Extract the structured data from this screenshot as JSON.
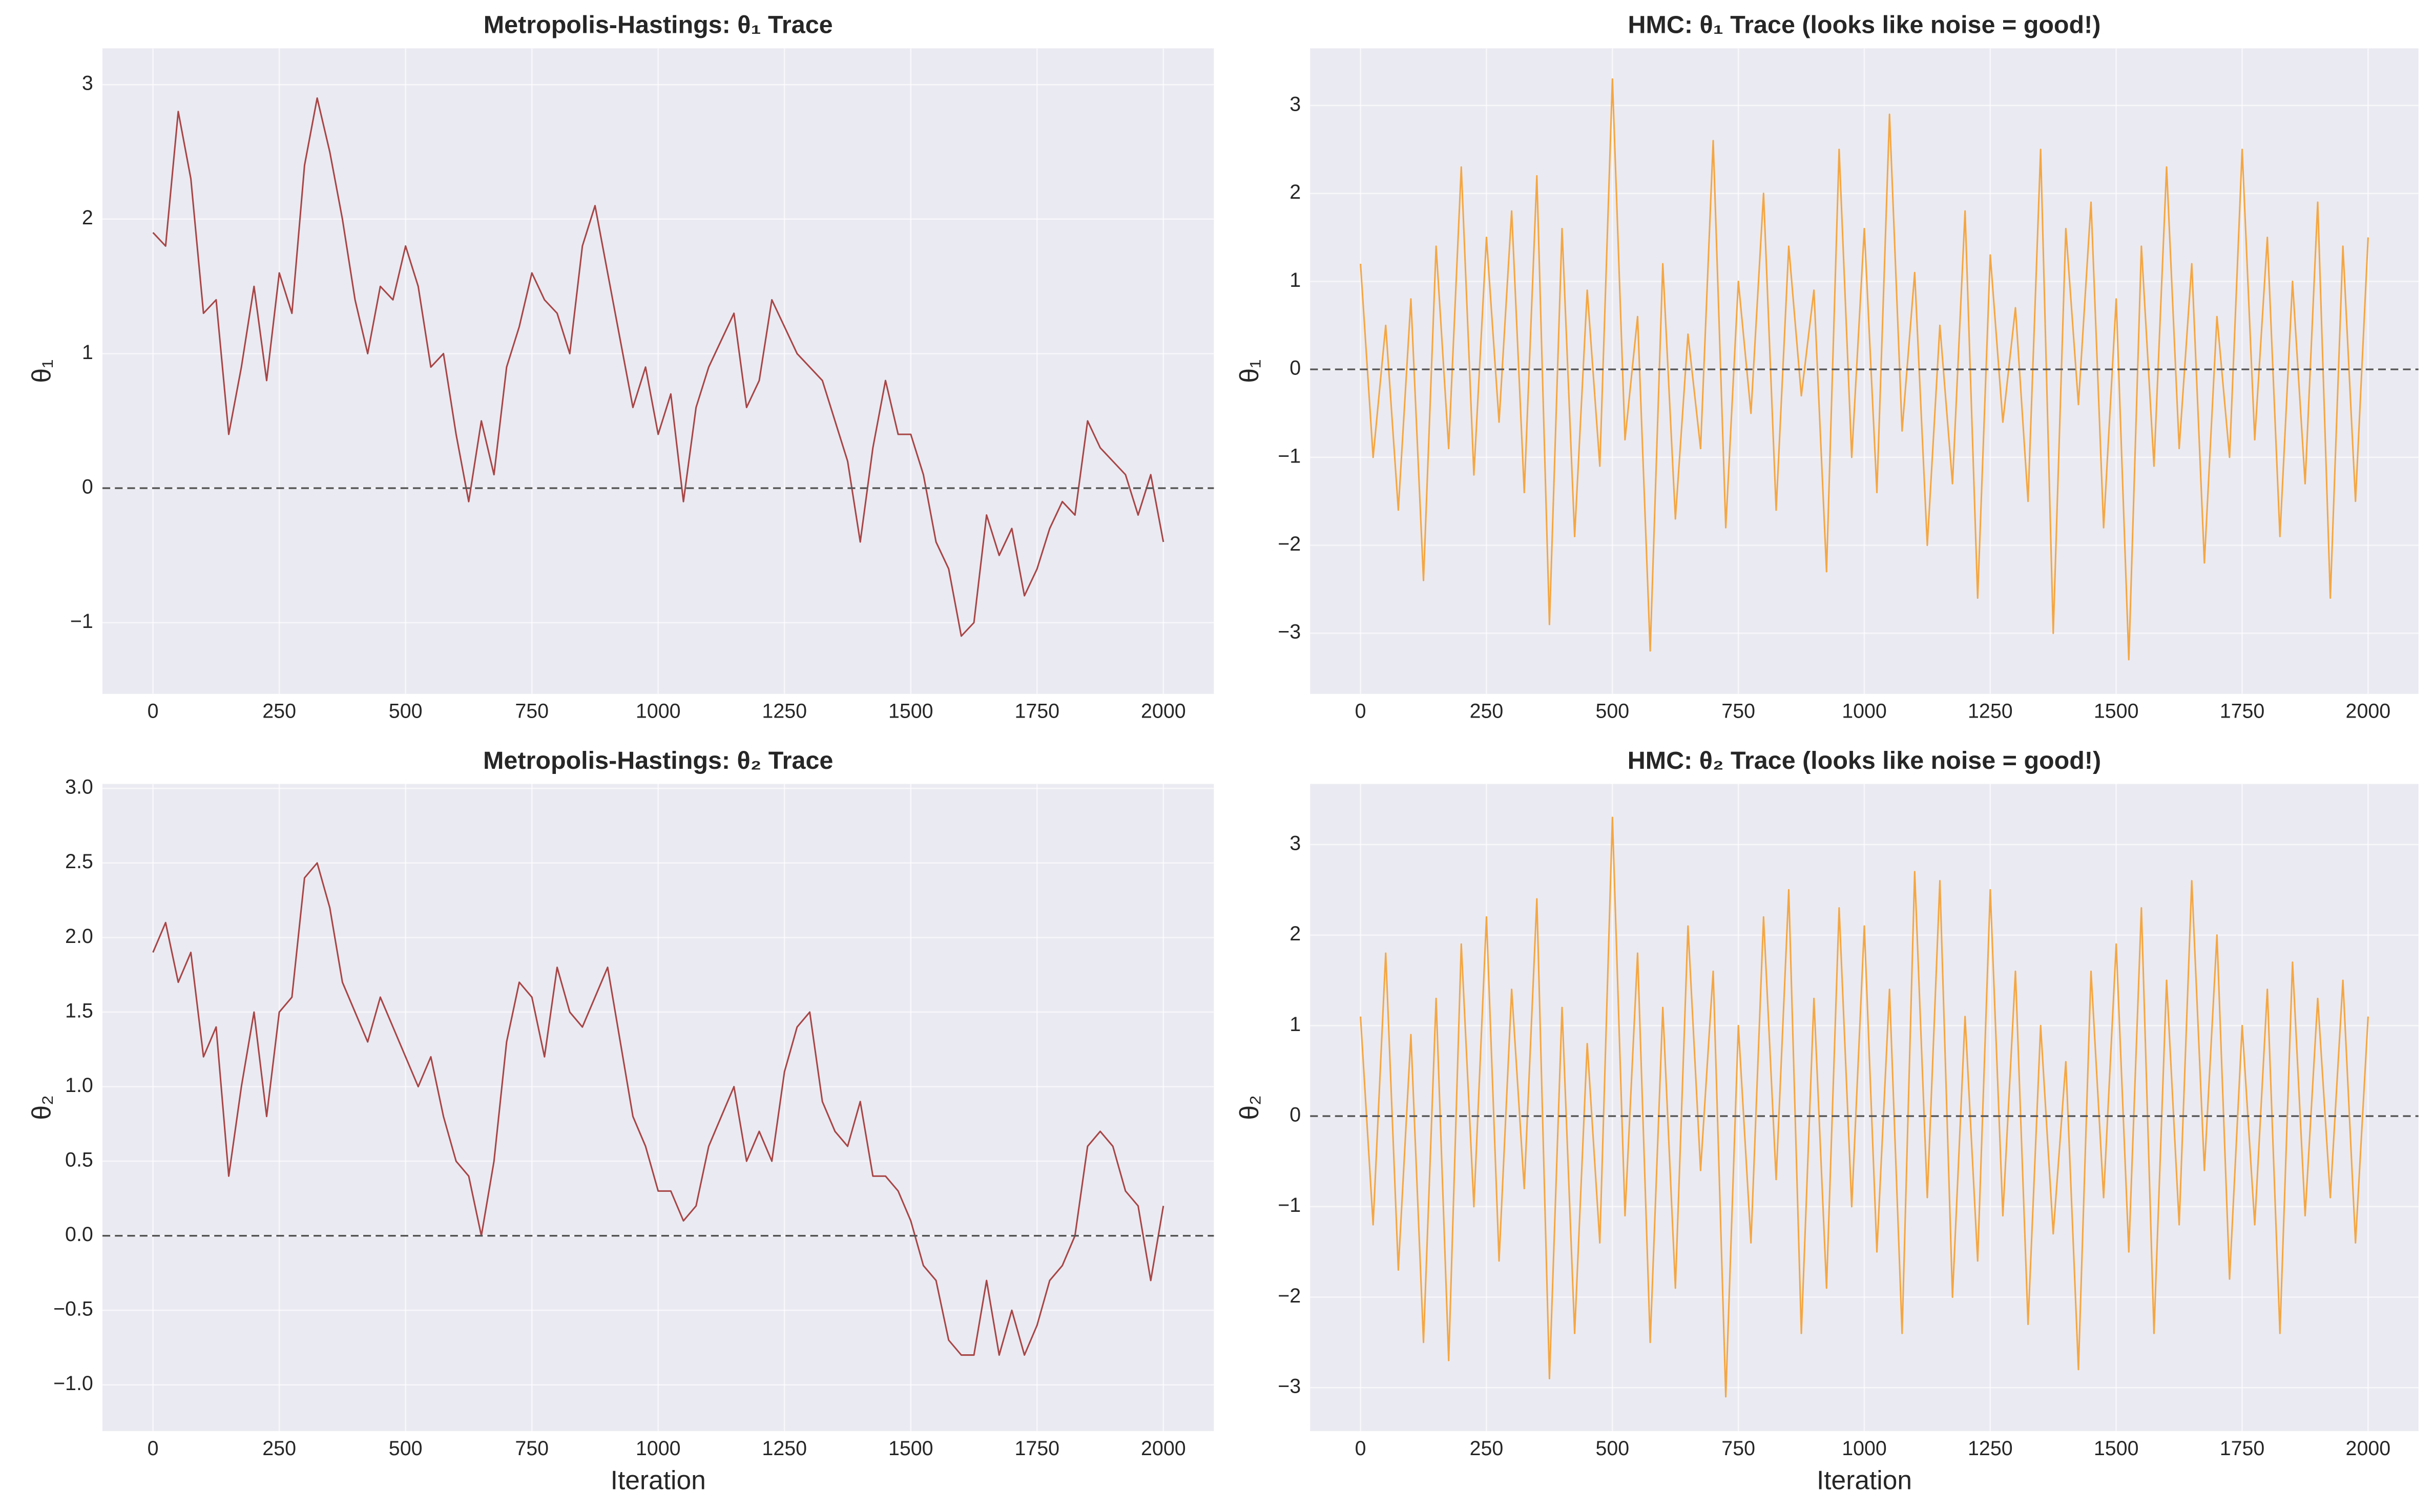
{
  "chart_data": [
    {
      "type": "line",
      "title": "Metropolis-Hastings: θ₁ Trace",
      "ylabel": "θ₁",
      "color": "#a84545",
      "grid": true,
      "hline": 0,
      "xlim": [
        -100,
        2100
      ],
      "ylim": [
        -1.53,
        3.27
      ],
      "xticks": [
        0,
        250,
        500,
        750,
        1000,
        1250,
        1500,
        1750,
        2000
      ],
      "yticks": [
        {
          "value": -1,
          "label": "−1"
        },
        0,
        1,
        2,
        3
      ],
      "x": [
        0,
        25,
        50,
        75,
        100,
        125,
        150,
        175,
        200,
        225,
        250,
        275,
        300,
        325,
        350,
        375,
        400,
        425,
        450,
        475,
        500,
        525,
        550,
        575,
        600,
        625,
        650,
        675,
        700,
        725,
        750,
        775,
        800,
        825,
        850,
        875,
        900,
        925,
        950,
        975,
        1000,
        1025,
        1050,
        1075,
        1100,
        1125,
        1150,
        1175,
        1200,
        1225,
        1250,
        1275,
        1300,
        1325,
        1350,
        1375,
        1400,
        1425,
        1450,
        1475,
        1500,
        1525,
        1550,
        1575,
        1600,
        1625,
        1650,
        1675,
        1700,
        1725,
        1750,
        1775,
        1800,
        1825,
        1850,
        1875,
        1900,
        1925,
        1950,
        1975,
        2000
      ],
      "values": [
        1.9,
        1.8,
        2.8,
        2.3,
        1.3,
        1.4,
        0.4,
        0.9,
        1.5,
        0.8,
        1.6,
        1.3,
        2.4,
        2.9,
        2.5,
        2.0,
        1.4,
        1.0,
        1.5,
        1.4,
        1.8,
        1.5,
        0.9,
        1.0,
        0.4,
        -0.1,
        0.5,
        0.1,
        0.9,
        1.2,
        1.6,
        1.4,
        1.3,
        1.0,
        1.8,
        2.1,
        1.6,
        1.1,
        0.6,
        0.9,
        0.4,
        0.7,
        -0.1,
        0.6,
        0.9,
        1.1,
        1.3,
        0.6,
        0.8,
        1.4,
        1.2,
        1.0,
        0.9,
        0.8,
        0.5,
        0.2,
        -0.4,
        0.3,
        0.8,
        0.4,
        0.4,
        0.1,
        -0.4,
        -0.6,
        -1.1,
        -1.0,
        -0.2,
        -0.5,
        -0.3,
        -0.8,
        -0.6,
        -0.3,
        -0.1,
        -0.2,
        0.5,
        0.3,
        0.2,
        0.1,
        -0.2,
        0.1,
        -0.4
      ]
    },
    {
      "type": "line",
      "title": "HMC: θ₁ Trace (looks like noise = good!)",
      "ylabel": "θ₁",
      "color": "#f5a640",
      "grid": true,
      "hline": 0,
      "xlim": [
        -100,
        2100
      ],
      "ylim": [
        -3.69,
        3.65
      ],
      "xticks": [
        0,
        250,
        500,
        750,
        1000,
        1250,
        1500,
        1750,
        2000
      ],
      "yticks": [
        {
          "value": -3,
          "label": "−3"
        },
        {
          "value": -2,
          "label": "−2"
        },
        {
          "value": -1,
          "label": "−1"
        },
        0,
        1,
        2,
        3
      ],
      "x": [
        0,
        25,
        50,
        75,
        100,
        125,
        150,
        175,
        200,
        225,
        250,
        275,
        300,
        325,
        350,
        375,
        400,
        425,
        450,
        475,
        500,
        525,
        550,
        575,
        600,
        625,
        650,
        675,
        700,
        725,
        750,
        775,
        800,
        825,
        850,
        875,
        900,
        925,
        950,
        975,
        1000,
        1025,
        1050,
        1075,
        1100,
        1125,
        1150,
        1175,
        1200,
        1225,
        1250,
        1275,
        1300,
        1325,
        1350,
        1375,
        1400,
        1425,
        1450,
        1475,
        1500,
        1525,
        1550,
        1575,
        1600,
        1625,
        1650,
        1675,
        1700,
        1725,
        1750,
        1775,
        1800,
        1825,
        1850,
        1875,
        1900,
        1925,
        1950,
        1975,
        2000
      ],
      "values": [
        1.2,
        -1.0,
        0.5,
        -1.6,
        0.8,
        -2.4,
        1.4,
        -0.9,
        2.3,
        -1.2,
        1.5,
        -0.6,
        1.8,
        -1.4,
        2.2,
        -2.9,
        1.6,
        -1.9,
        0.9,
        -1.1,
        3.3,
        -0.8,
        0.6,
        -3.2,
        1.2,
        -1.7,
        0.4,
        -0.9,
        2.6,
        -1.8,
        1.0,
        -0.5,
        2.0,
        -1.6,
        1.4,
        -0.3,
        0.9,
        -2.3,
        2.5,
        -1.0,
        1.6,
        -1.4,
        2.9,
        -0.7,
        1.1,
        -2.0,
        0.5,
        -1.3,
        1.8,
        -2.6,
        1.3,
        -0.6,
        0.7,
        -1.5,
        2.5,
        -3.0,
        1.6,
        -0.4,
        1.9,
        -1.8,
        0.8,
        -3.3,
        1.4,
        -1.1,
        2.3,
        -0.9,
        1.2,
        -2.2,
        0.6,
        -1.0,
        2.5,
        -0.8,
        1.5,
        -1.9,
        1.0,
        -1.3,
        1.9,
        -2.6,
        1.4,
        -1.5,
        1.5
      ]
    },
    {
      "type": "line",
      "title": "Metropolis-Hastings: θ₂ Trace",
      "xlabel": "Iteration",
      "ylabel": "θ₂",
      "color": "#a84545",
      "grid": true,
      "hline": 0,
      "xlim": [
        -100,
        2100
      ],
      "ylim": [
        -1.31,
        3.03
      ],
      "xticks": [
        0,
        250,
        500,
        750,
        1000,
        1250,
        1500,
        1750,
        2000
      ],
      "yticks": [
        {
          "value": -1,
          "label": "−1.0"
        },
        {
          "value": -0.5,
          "label": "−0.5"
        },
        {
          "value": 0,
          "label": "0.0"
        },
        0.5,
        {
          "value": 1,
          "label": "1.0"
        },
        1.5,
        {
          "value": 2,
          "label": "2.0"
        },
        2.5,
        {
          "value": 3,
          "label": "3.0"
        }
      ],
      "x": [
        0,
        25,
        50,
        75,
        100,
        125,
        150,
        175,
        200,
        225,
        250,
        275,
        300,
        325,
        350,
        375,
        400,
        425,
        450,
        475,
        500,
        525,
        550,
        575,
        600,
        625,
        650,
        675,
        700,
        725,
        750,
        775,
        800,
        825,
        850,
        875,
        900,
        925,
        950,
        975,
        1000,
        1025,
        1050,
        1075,
        1100,
        1125,
        1150,
        1175,
        1200,
        1225,
        1250,
        1275,
        1300,
        1325,
        1350,
        1375,
        1400,
        1425,
        1450,
        1475,
        1500,
        1525,
        1550,
        1575,
        1600,
        1625,
        1650,
        1675,
        1700,
        1725,
        1750,
        1775,
        1800,
        1825,
        1850,
        1875,
        1900,
        1925,
        1950,
        1975,
        2000
      ],
      "values": [
        1.9,
        2.1,
        1.7,
        1.9,
        1.2,
        1.4,
        0.4,
        1.0,
        1.5,
        0.8,
        1.5,
        1.6,
        2.4,
        2.5,
        2.2,
        1.7,
        1.5,
        1.3,
        1.6,
        1.4,
        1.2,
        1.0,
        1.2,
        0.8,
        0.5,
        0.4,
        0.0,
        0.5,
        1.3,
        1.7,
        1.6,
        1.2,
        1.8,
        1.5,
        1.4,
        1.6,
        1.8,
        1.3,
        0.8,
        0.6,
        0.3,
        0.3,
        0.1,
        0.2,
        0.6,
        0.8,
        1.0,
        0.5,
        0.7,
        0.5,
        1.1,
        1.4,
        1.5,
        0.9,
        0.7,
        0.6,
        0.9,
        0.4,
        0.4,
        0.3,
        0.1,
        -0.2,
        -0.3,
        -0.7,
        -0.8,
        -0.8,
        -0.3,
        -0.8,
        -0.5,
        -0.8,
        -0.6,
        -0.3,
        -0.2,
        0.0,
        0.6,
        0.7,
        0.6,
        0.3,
        0.2,
        -0.3,
        0.2
      ]
    },
    {
      "type": "line",
      "title": "HMC: θ₂ Trace (looks like noise = good!)",
      "xlabel": "Iteration",
      "ylabel": "θ₂",
      "color": "#f5a640",
      "grid": true,
      "hline": 0,
      "xlim": [
        -100,
        2100
      ],
      "ylim": [
        -3.48,
        3.67
      ],
      "xticks": [
        0,
        250,
        500,
        750,
        1000,
        1250,
        1500,
        1750,
        2000
      ],
      "yticks": [
        {
          "value": -3,
          "label": "−3"
        },
        {
          "value": -2,
          "label": "−2"
        },
        {
          "value": -1,
          "label": "−1"
        },
        0,
        1,
        2,
        3
      ],
      "x": [
        0,
        25,
        50,
        75,
        100,
        125,
        150,
        175,
        200,
        225,
        250,
        275,
        300,
        325,
        350,
        375,
        400,
        425,
        450,
        475,
        500,
        525,
        550,
        575,
        600,
        625,
        650,
        675,
        700,
        725,
        750,
        775,
        800,
        825,
        850,
        875,
        900,
        925,
        950,
        975,
        1000,
        1025,
        1050,
        1075,
        1100,
        1125,
        1150,
        1175,
        1200,
        1225,
        1250,
        1275,
        1300,
        1325,
        1350,
        1375,
        1400,
        1425,
        1450,
        1475,
        1500,
        1525,
        1550,
        1575,
        1600,
        1625,
        1650,
        1675,
        1700,
        1725,
        1750,
        1775,
        1800,
        1825,
        1850,
        1875,
        1900,
        1925,
        1950,
        1975,
        2000
      ],
      "values": [
        1.1,
        -1.2,
        1.8,
        -1.7,
        0.9,
        -2.5,
        1.3,
        -2.7,
        1.9,
        -1.0,
        2.2,
        -1.6,
        1.4,
        -0.8,
        2.4,
        -2.9,
        1.2,
        -2.4,
        0.8,
        -1.4,
        3.3,
        -1.1,
        1.8,
        -2.5,
        1.2,
        -1.9,
        2.1,
        -0.6,
        1.6,
        -3.1,
        1.0,
        -1.4,
        2.2,
        -0.7,
        2.5,
        -2.4,
        1.3,
        -1.9,
        2.3,
        -1.0,
        2.1,
        -1.5,
        1.4,
        -2.4,
        2.7,
        -0.9,
        2.6,
        -2.0,
        1.1,
        -1.6,
        2.5,
        -1.1,
        1.6,
        -2.3,
        1.0,
        -1.3,
        0.6,
        -2.8,
        1.6,
        -0.9,
        1.9,
        -1.5,
        2.3,
        -2.4,
        1.5,
        -1.2,
        2.6,
        -0.6,
        2.0,
        -1.8,
        1.0,
        -1.2,
        1.4,
        -2.4,
        1.7,
        -1.1,
        1.3,
        -0.9,
        1.5,
        -1.4,
        1.1
      ]
    }
  ]
}
